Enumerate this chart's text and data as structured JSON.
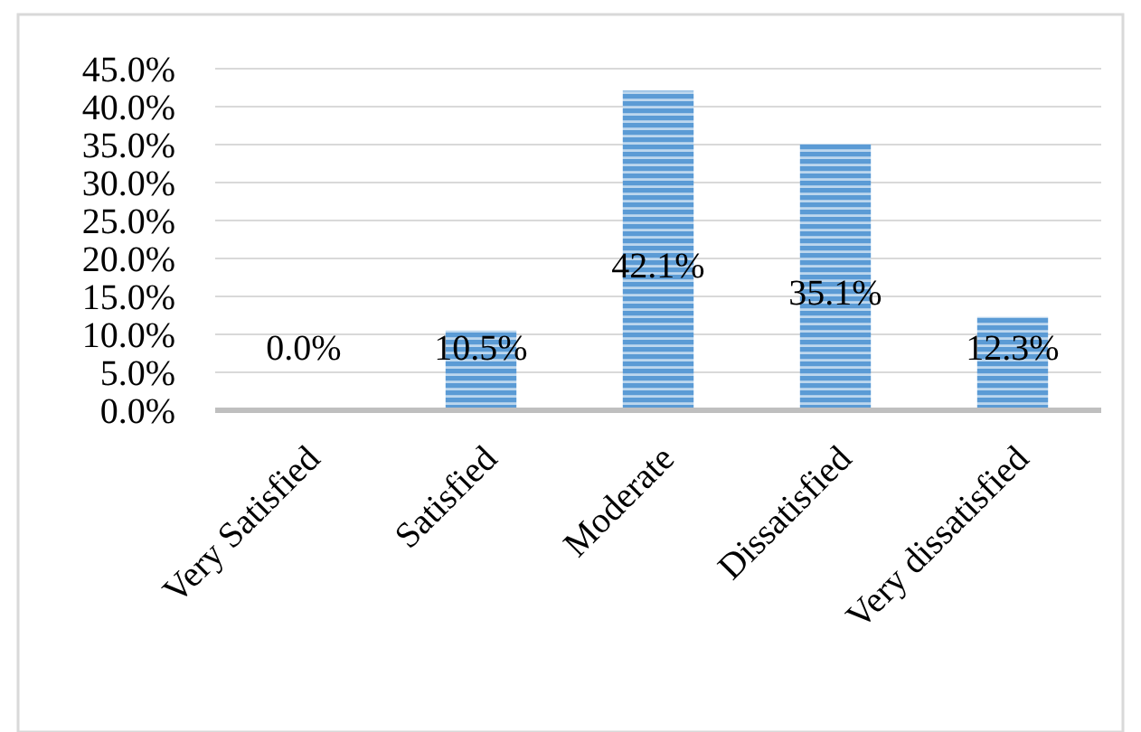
{
  "chart_data": {
    "type": "bar",
    "categories": [
      "Very Satisfied",
      "Satisfied",
      "Moderate",
      "Dissatisfied",
      "Very dissatisfied"
    ],
    "values": [
      0,
      10.5,
      42.1,
      35.1,
      12.3
    ],
    "value_labels": [
      "0.0%",
      "10.5%",
      "42.1%",
      "35.1%",
      "12.3%"
    ],
    "color": "#5b9bd5",
    "ylim": [
      0,
      45
    ],
    "yticks": [
      {
        "value": 0,
        "label": "0.0%"
      },
      {
        "value": 5,
        "label": "5.0%"
      },
      {
        "value": 10,
        "label": "10.0%"
      },
      {
        "value": 15,
        "label": "15.0%"
      },
      {
        "value": 20,
        "label": "20.0%"
      },
      {
        "value": 25,
        "label": "25.0%"
      },
      {
        "value": 30,
        "label": "30.0%"
      },
      {
        "value": 35,
        "label": "35.0%"
      },
      {
        "value": 40,
        "label": "40.0%"
      },
      {
        "value": 45,
        "label": "45.0%"
      }
    ],
    "grid": "y"
  }
}
